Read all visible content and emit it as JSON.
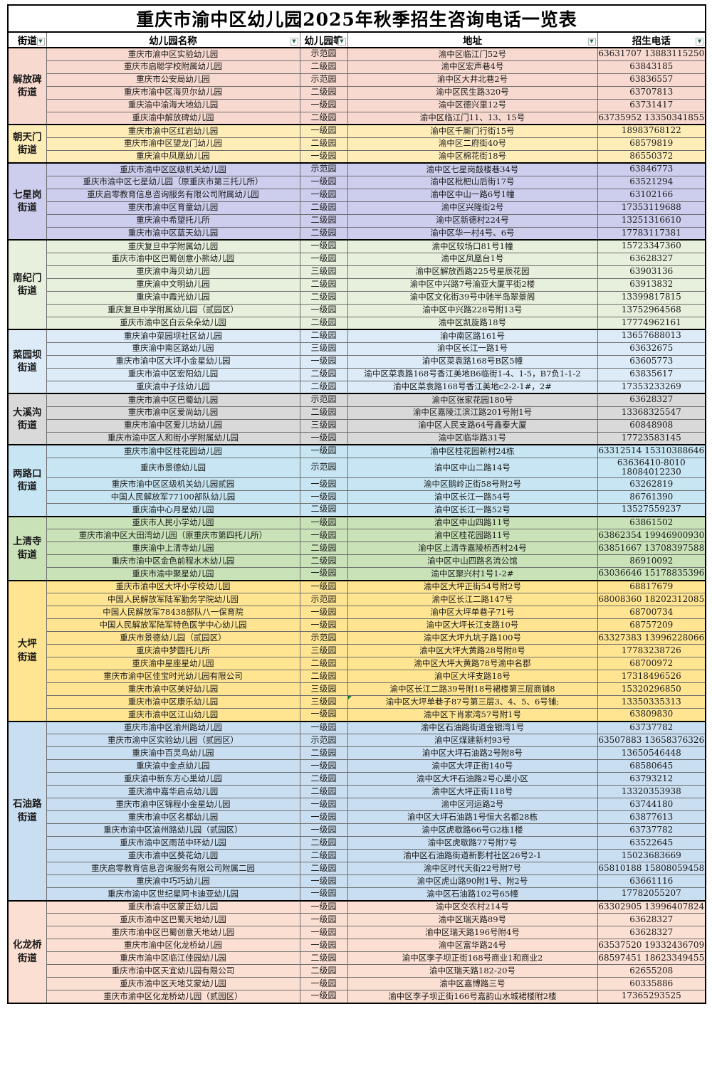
{
  "title": "重庆市渝中区幼儿园2025年秋季招生咨询电话一览表",
  "columns": [
    "街道",
    "幼儿园名称",
    "幼儿园等",
    "地址",
    "招生电话"
  ],
  "filter_icon": "▼",
  "comment_flag": {
    "group_index": 8,
    "row_index": 9,
    "color": "#107c41"
  },
  "groups": [
    {
      "street": "解放碑街道",
      "color": "#f8d9cf",
      "rows": [
        [
          "重庆市渝中区实验幼儿园",
          "示范园",
          "渝中区临江门52号",
          "63631707  13883115250"
        ],
        [
          "重庆市启聪学校附属幼儿园",
          "二级园",
          "渝中区宏声巷4号",
          "63843185"
        ],
        [
          "重庆市公安局幼儿园",
          "示范园",
          "渝中区大井北巷2号",
          "63836557"
        ],
        [
          "重庆市渝中区海贝尔幼儿园",
          "二级园",
          "渝中区民生路320号",
          "63707813"
        ],
        [
          "重庆渝中渝海大地幼儿园",
          "一级园",
          "渝中区德兴里12号",
          "63731417"
        ],
        [
          "重庆渝中解放碑幼儿园",
          "二级园",
          "渝中区临江门11、13、15号",
          "63735952 13350341855"
        ]
      ]
    },
    {
      "street": "朝天门街道",
      "color": "#ffedb8",
      "rows": [
        [
          "重庆市渝中区红岩幼儿园",
          "一级园",
          "渝中区千厮门行街15号",
          "18983768122"
        ],
        [
          "重庆市渝中区望龙门幼儿园",
          "二级园",
          "渝中区二府街40号",
          "68579819"
        ],
        [
          "重庆渝中凤凰幼儿园",
          "一级园",
          "渝中区棉花街18号",
          "86550372"
        ]
      ]
    },
    {
      "street": "七星岗街道",
      "color": "#cdcdee",
      "rows": [
        [
          "重庆市渝中区区级机关幼儿园",
          "示范园",
          "渝中区七星岗鼓楼巷34号",
          "63846773"
        ],
        [
          "重庆市渝中区七星幼儿园（原重庆市第三托儿所）",
          "一级园",
          "渝中区枇杷山后街17号",
          "63521294"
        ],
        [
          "重庆启零教育信息咨询服务有限公司附属幼儿园",
          "一级园",
          "渝中区中山一路6号1幢",
          "63102166"
        ],
        [
          "重庆市渝中区育童幼儿园",
          "二级园",
          "渝中区兴隆街2号",
          "17353119688"
        ],
        [
          "重庆渝中希望托儿所",
          "二级园",
          "渝中区新德村224号",
          "13251316610"
        ],
        [
          "重庆市渝中区蓝天幼儿园",
          "二级园",
          "渝中区华一村4号、6号",
          "17783117381"
        ]
      ]
    },
    {
      "street": "南纪门街道",
      "color": "#e7f0dc",
      "rows": [
        [
          "重庆复旦中学附属幼儿园",
          "一级园",
          "渝中区较场口81号1幢",
          "15723347360"
        ],
        [
          "重庆市渝中区巴蜀创意小熊幼儿园",
          "一级园",
          "渝中区凤凰台1号",
          "63628327"
        ],
        [
          "重庆渝中海贝幼儿园",
          "三级园",
          "渝中区解放西路225号星辰花园",
          "63903136"
        ],
        [
          "重庆渝中文明幼儿园",
          "二级园",
          "渝中区中兴路7号渝亚大厦平街2楼",
          "63913832"
        ],
        [
          "重庆渝中霞光幼儿园",
          "二级园",
          "渝中区文化街39号中驰半岛翠景阁",
          "13399817815"
        ],
        [
          "重庆复旦中学附属幼儿园（贰园区）",
          "一级园",
          "渝中区中兴路228号附13号",
          "13752964568"
        ],
        [
          "重庆市渝中区白云朵朵幼儿园",
          "二级园",
          "渝中区凯旋路18号",
          "17774962161"
        ]
      ]
    },
    {
      "street": "菜园坝街道",
      "color": "#dcebf7",
      "rows": [
        [
          "重庆渝中菜园坝社区幼儿园",
          "二级园",
          "渝中南区路161号",
          "13657688013"
        ],
        [
          "重庆渝中南区路幼儿园",
          "三级园",
          "渝中区长江一路1号",
          "63632675"
        ],
        [
          "重庆市渝中区大坪小金星幼儿园",
          "一级园",
          "渝中区菜袁路168号B区5幢",
          "63605773"
        ],
        [
          "重庆市渝中区宏阳幼儿园",
          "二级园",
          "渝中区菜袁路168号香江美地B6临街1-4、1-5，B7负1-1-2",
          "63835617"
        ],
        [
          "重庆渝中子炫幼儿园",
          "二级园",
          "渝中区菜袁路168号香江美地c2-2-1#，2#",
          "17353233269"
        ]
      ]
    },
    {
      "street": "大溪沟街道",
      "color": "#d9d9d9",
      "rows": [
        [
          "重庆市渝中区巴蜀幼儿园",
          "示范园",
          "渝中区张家花园180号",
          "63628327"
        ],
        [
          "重庆市渝中区爱尚幼儿园",
          "二级园",
          "渝中区嘉陵江滨江路201号附1号",
          "13368325547"
        ],
        [
          "重庆市渝中区爱儿坊幼儿园",
          "三级园",
          "渝中区人民支路64号鑫泰大厦",
          "60848908"
        ],
        [
          "重庆市渝中区人和街小学附属幼儿园",
          "一级园",
          "渝中区临华路31号",
          "17723583145"
        ]
      ]
    },
    {
      "street": "两路口街道",
      "color": "#c7e5f2",
      "rows": [
        [
          "重庆市渝中区桂花园幼儿园",
          "一级园",
          "渝中区桂花园新村24栋",
          "63312514   15310388646"
        ],
        [
          "重庆市景德幼儿园",
          "示范园",
          "渝中区中山二路14号",
          "63636410-8010\n18084012230"
        ],
        [
          "重庆市渝中区区级机关幼儿园贰园",
          "一级园",
          "渝中区鹅岭正街58号附2号",
          "63262819"
        ],
        [
          "中国人民解放军77100部队幼儿园",
          "一级园",
          "渝中区长江一路54号",
          "86761390"
        ],
        [
          "重庆渝中心月星幼儿园",
          "二级园",
          "渝中区长江一路52号",
          "13527559237"
        ]
      ]
    },
    {
      "street": "上清寺街道",
      "color": "#c9e2b8",
      "rows": [
        [
          "重庆市人民小学幼儿园",
          "一级园",
          "渝中区中山四路11号",
          "63861502"
        ],
        [
          "重庆市渝中区大田湾幼儿园（原重庆市第四托儿所）",
          "一级园",
          "渝中区桂花园路11号",
          "63862354 19946900930"
        ],
        [
          "重庆渝中上清寺幼儿园",
          "二级园",
          "渝中区上清寺嘉陵桥西村24号",
          "63851667  13708397588"
        ],
        [
          "重庆市渝中区金色前程水木幼儿园",
          "二级园",
          "渝中区中山四路名流公馆",
          "86910092"
        ],
        [
          "重庆市渝中聚星幼儿园",
          "一级园",
          "渝中区聚兴村1号1-2#",
          "63036646  15178835396"
        ]
      ]
    },
    {
      "street": "大坪街道",
      "color": "#ffe591",
      "rows": [
        [
          "重庆市渝中区大坪小学校幼儿园",
          "一级园",
          "渝中区大坪正街54号附2号",
          "68817679"
        ],
        [
          "中国人民解放军陆军勤务学院幼儿园",
          "示范园",
          "渝中区长江二路147号",
          "68008360   18202312085"
        ],
        [
          "中国人民解放军78438部队八一保育院",
          "一级园",
          "渝中区大坪单巷子71号",
          "68700734"
        ],
        [
          "中国人民解放军陆军特色医学中心幼儿园",
          "一级园",
          "渝中区大坪长江支路10号",
          "68757209"
        ],
        [
          "重庆市景德幼儿园（贰园区）",
          "示范园",
          "渝中区大坪九坑子路100号",
          "63327383 13996228066"
        ],
        [
          "重庆渝中梦圆托儿所",
          "三级园",
          "渝中区大坪大黄路28号附8号",
          "17783238726"
        ],
        [
          "重庆渝中星座星幼儿园",
          "二级园",
          "渝中区大坪大黄路78号渝中名郡",
          "68700972"
        ],
        [
          "重庆市渝中区佳宝时光幼儿园有限公司",
          "二级园",
          "渝中区大坪支路18号",
          "17318496526"
        ],
        [
          "重庆市渝中区美好幼儿园",
          "三级园",
          "渝中区长江二路39号附18号裙楼第三层商铺8",
          "15320296850"
        ],
        [
          "重庆市渝中区康乐幼儿园",
          "三级园",
          "渝中区大坪单巷子87号第三层3、4、5、6号铺;",
          "13350335313"
        ],
        [
          "重庆市渝中区江山幼儿园",
          "一级园",
          "渝中区下肖家湾57号附1号",
          "63809830"
        ]
      ]
    },
    {
      "street": "石油路街道",
      "color": "#c9def0",
      "rows": [
        [
          "重庆市渝中区渝州路幼儿园",
          "一级园",
          "渝中区石油路街道金银湾1号",
          "63737782"
        ],
        [
          "重庆市渝中区实验幼儿园（贰园区）",
          "示范园",
          "渝中区煤建新村93号",
          "63507883 13658376326"
        ],
        [
          "重庆渝中百灵鸟幼儿园",
          "二级园",
          "渝中区大坪石油路2号附8号",
          "13650546448"
        ],
        [
          "重庆渝中金点幼儿园",
          "一级园",
          "渝中区大坪正街140号",
          "68580645"
        ],
        [
          "重庆渝中新东方心巢幼儿园",
          "二级园",
          "渝中区大坪石油路2号心巢小区",
          "63793212"
        ],
        [
          "重庆渝中嘉华启点幼儿园",
          "二级园",
          "渝中区大坪正街118号",
          "13320353938"
        ],
        [
          "重庆市渝中区锦程小金星幼儿园",
          "一级园",
          "渝中区河运路2号",
          "63744180"
        ],
        [
          "重庆市渝中区名都幼儿园",
          "一级园",
          "渝中区大坪石油路1号恒大名都28栋",
          "63877613"
        ],
        [
          "重庆市渝中区渝州路幼儿园（贰园区）",
          "一级园",
          "渝中区虎歇路66号G2栋1楼",
          "63737782"
        ],
        [
          "重庆市渝中区雨茁中环幼儿园",
          "二级园",
          "渝中区虎歇路77号附7号",
          "63522645"
        ],
        [
          "重庆市渝中区葵花幼儿园",
          "二级园",
          "渝中区石油路街道新影村社区26号2-1",
          "15023683669"
        ],
        [
          "重庆启零教育信息咨询服务有限公司附属二园",
          "二级园",
          "渝中区时代天街22号附7号",
          "65810188 15808059458"
        ],
        [
          "重庆渝中巧巧幼儿园",
          "一级园",
          "渝中区虎山路90附1号、附2号",
          "63661116"
        ],
        [
          "重庆市渝中区世纪星阿卡迪亚幼儿园",
          "一级园",
          "渝中区石油路102号65幢",
          "17782055207"
        ]
      ]
    },
    {
      "street": "化龙桥街道",
      "color": "#fbdfd2",
      "rows": [
        [
          "重庆市渝中区蒙正幼儿园",
          "一级园",
          "渝中区交农村214号",
          "63302905 13996407824"
        ],
        [
          "重庆市渝中区巴蜀天地幼儿园",
          "一级园",
          "渝中区瑞天路89号",
          "63628327"
        ],
        [
          "重庆市渝中区巴蜀创意天地幼儿园",
          "一级园",
          "渝中区瑞天路196号附4号",
          "63628327"
        ],
        [
          "重庆市渝中区化龙桥幼儿园",
          "一级园",
          "渝中区富华路24号",
          "63537520  19332436709"
        ],
        [
          "重庆市渝中区临江佳园幼儿园",
          "二级园",
          "渝中区李子坝正街168号商业1和商业2",
          "68597451 18623349455"
        ],
        [
          "重庆市渝中区天宜幼儿园有限公司",
          "二级园",
          "渝中区瑞天路182-20号",
          "62655208"
        ],
        [
          "重庆市渝中区天地艾蒙幼儿园",
          "一级园",
          "渝中区嘉博路三号",
          "60335886"
        ],
        [
          "重庆市渝中区化龙桥幼儿园（贰园区）",
          "一级园",
          "渝中区李子坝正街166号嘉韵山水城裙楼附2楼",
          "17365293525"
        ]
      ]
    }
  ]
}
